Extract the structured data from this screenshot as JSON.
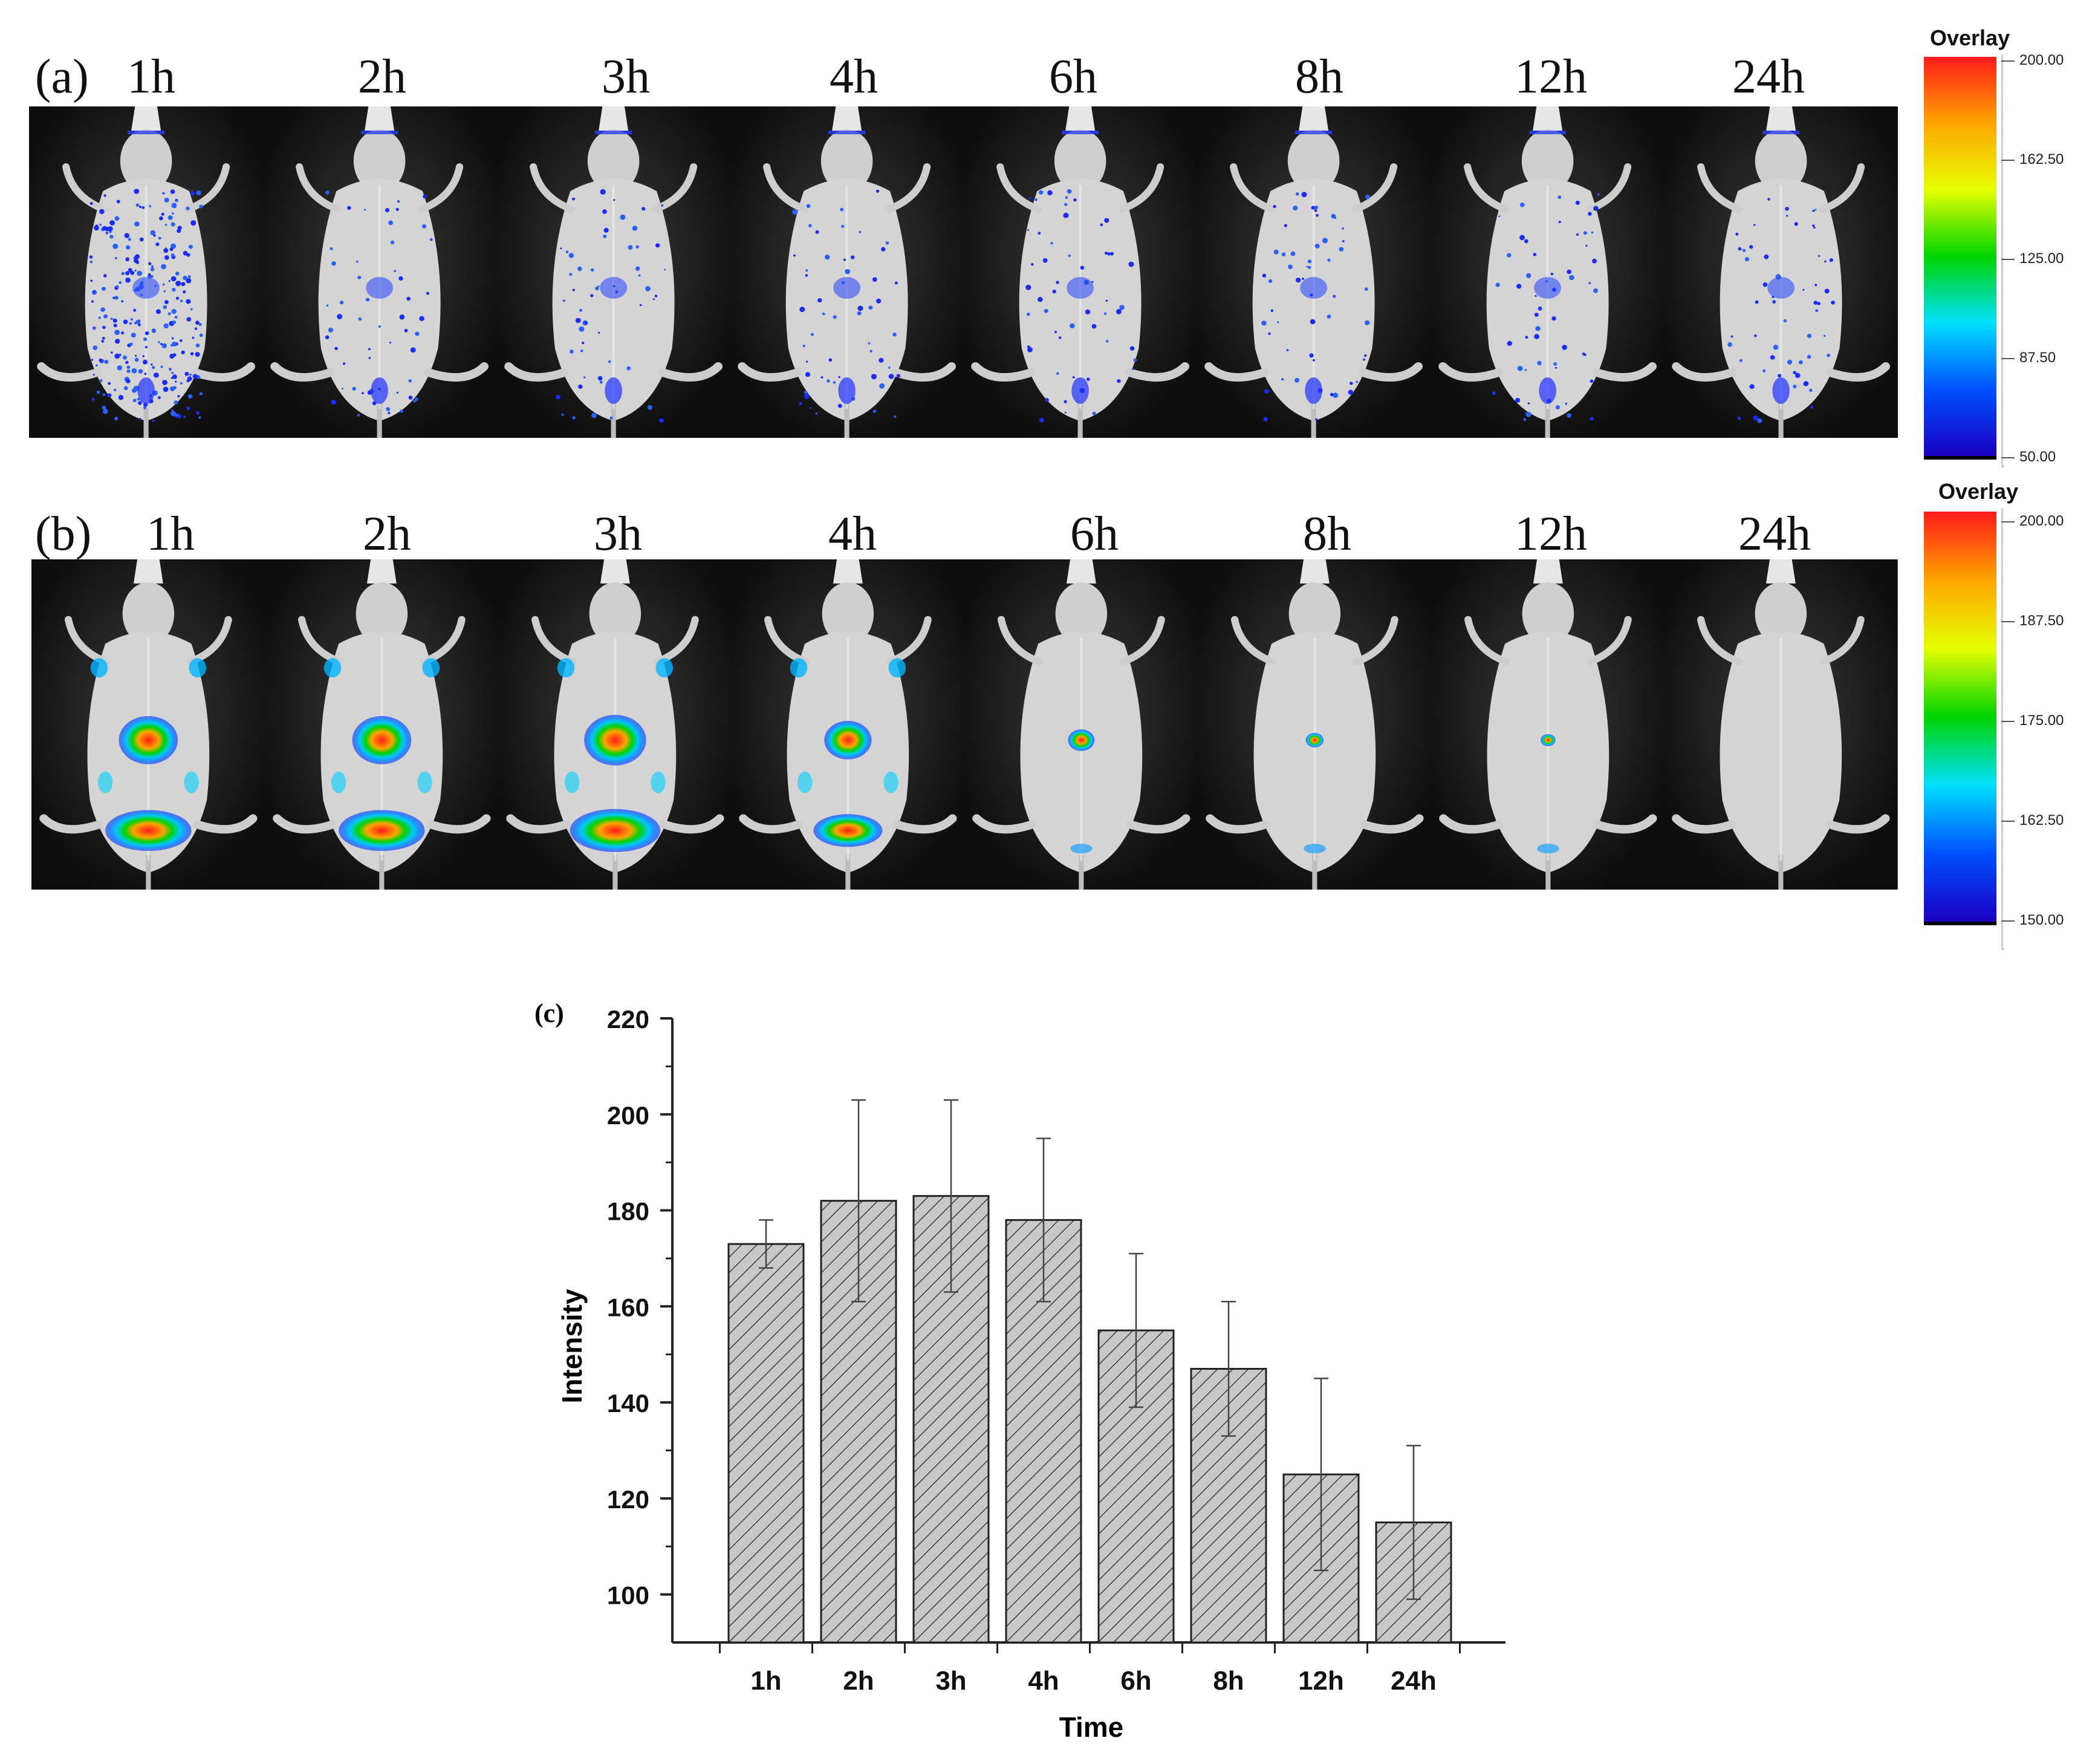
{
  "panel_a": {
    "label": "(a)",
    "times": [
      "1h",
      "2h",
      "3h",
      "4h",
      "6h",
      "8h",
      "12h",
      "24h"
    ],
    "colorbar": {
      "title": "Overlay",
      "ticks": [
        "200.00",
        "162.50",
        "125.00",
        "87.50",
        "50.00"
      ],
      "colors": [
        "#ff1a1a",
        "#ffa500",
        "#e6ff00",
        "#00d400",
        "#00e0ff",
        "#0050ff",
        "#1a00c0"
      ]
    }
  },
  "panel_b": {
    "label": "(b)",
    "times": [
      "1h",
      "2h",
      "3h",
      "4h",
      "6h",
      "8h",
      "12h",
      "24h"
    ],
    "colorbar": {
      "title": "Overlay",
      "ticks": [
        "200.00",
        "187.50",
        "175.00",
        "162.50",
        "150.00"
      ],
      "colors": [
        "#ff1a1a",
        "#ffa500",
        "#e6ff00",
        "#00d400",
        "#00e0ff",
        "#0050ff",
        "#1a00c0"
      ]
    }
  },
  "chart_data": {
    "panel_label": "(c)",
    "type": "bar",
    "categories": [
      "1h",
      "2h",
      "3h",
      "4h",
      "6h",
      "8h",
      "12h",
      "24h"
    ],
    "values": [
      173,
      182,
      183,
      178,
      155,
      147,
      125,
      115
    ],
    "errors": [
      5,
      21,
      20,
      17,
      16,
      14,
      20,
      16
    ],
    "xlabel": "Time",
    "ylabel": "Intensity",
    "ylim": [
      90,
      220
    ],
    "yticks": [
      100,
      120,
      140,
      160,
      180,
      200,
      220
    ],
    "grid": false,
    "bar_pattern": "diagonal-hatch",
    "bar_color": "#c8c8c8"
  }
}
